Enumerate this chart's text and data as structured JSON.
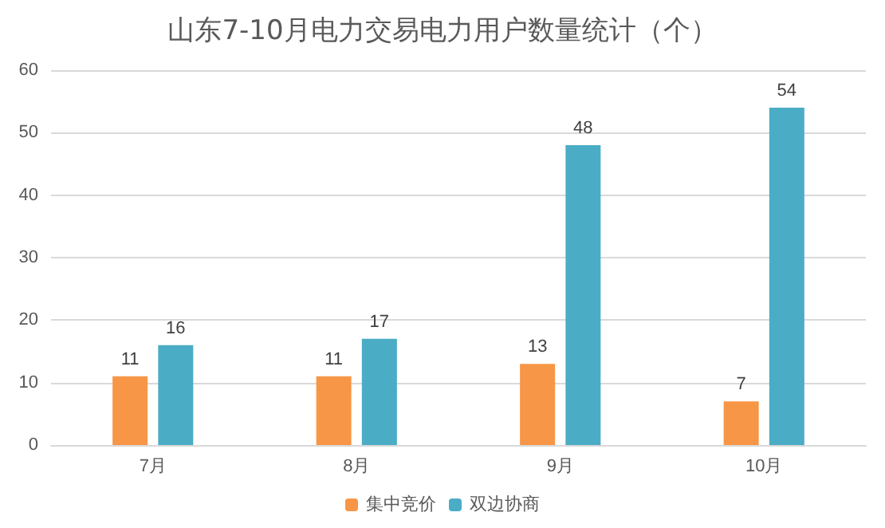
{
  "chart_data": {
    "type": "bar",
    "title": "山东7-10月电力交易电力用户数量统计（个）",
    "categories": [
      "7月",
      "8月",
      "9月",
      "10月"
    ],
    "series": [
      {
        "name": "集中竞价",
        "color": "#f79646",
        "values": [
          11,
          11,
          13,
          7
        ]
      },
      {
        "name": "双边协商",
        "color": "#4bacc6",
        "values": [
          16,
          17,
          48,
          54
        ]
      }
    ],
    "ylim": [
      0,
      60
    ],
    "yticks": [
      0,
      10,
      20,
      30,
      40,
      50,
      60
    ],
    "grid": "y",
    "legend": "bottom",
    "data_labels": true
  }
}
